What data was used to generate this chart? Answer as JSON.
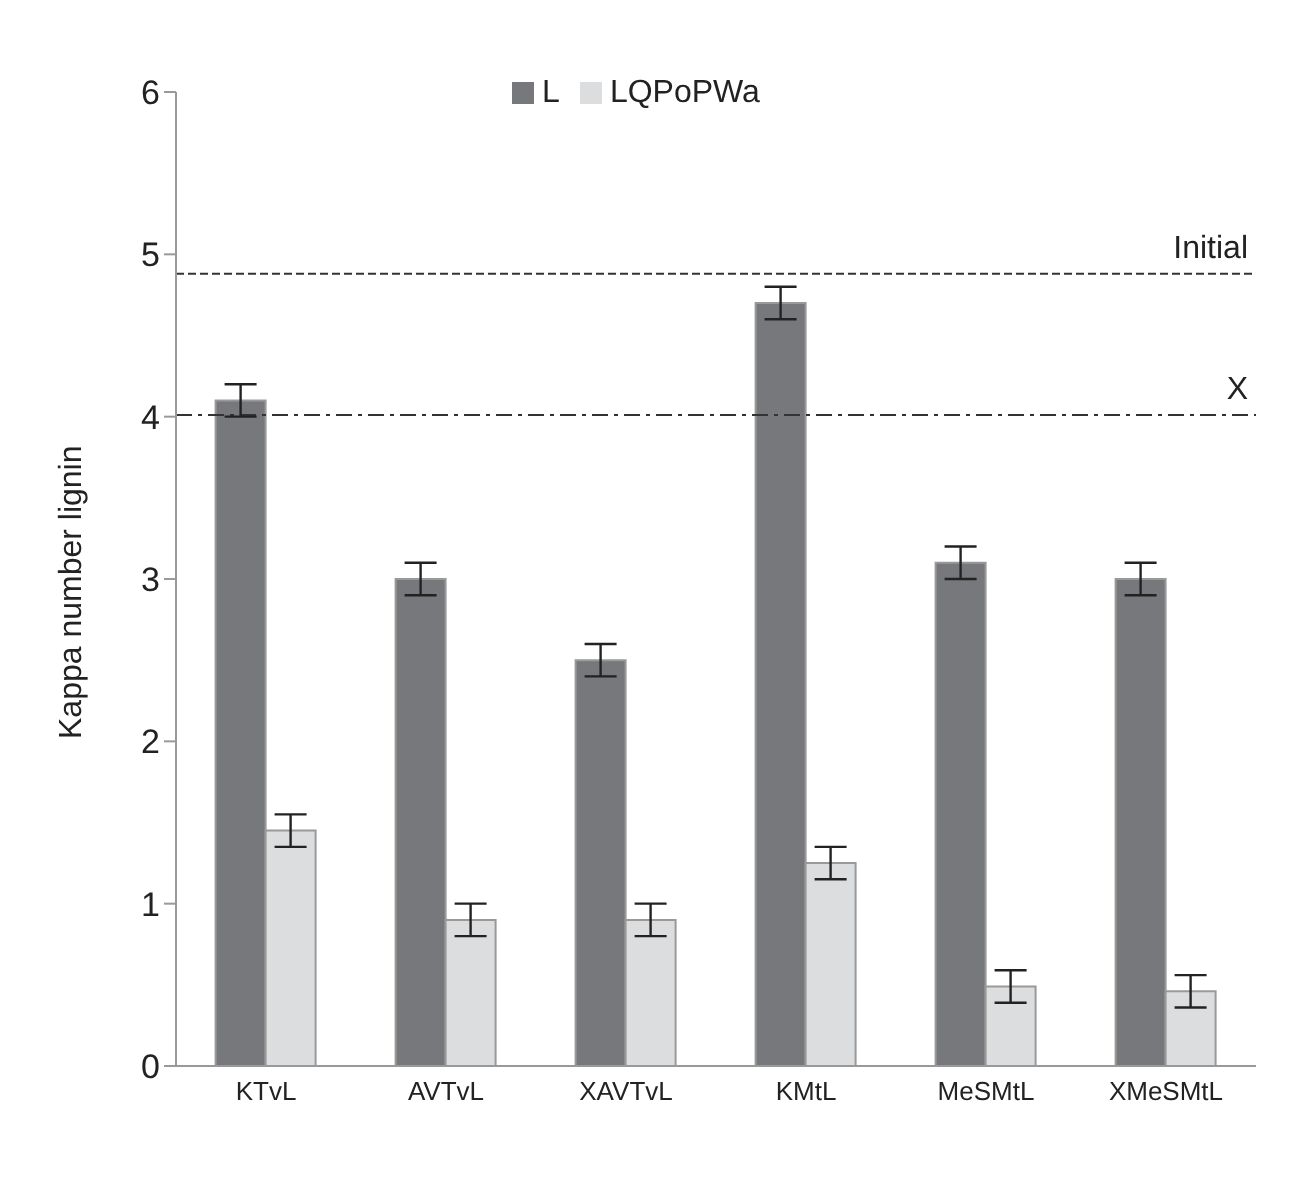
{
  "chart_data": {
    "type": "bar",
    "ylabel": "Kappa number lignin",
    "categories": [
      "KTvL",
      "AVTvL",
      "XAVTvL",
      "KMtL",
      "MeSMtL",
      "XMeSMtL"
    ],
    "series": [
      {
        "name": "L",
        "color": "#77787b",
        "values": [
          4.1,
          3.0,
          2.5,
          4.7,
          3.1,
          3.0
        ],
        "errors": [
          0.1,
          0.1,
          0.1,
          0.1,
          0.1,
          0.1
        ]
      },
      {
        "name": "LQPoPWa",
        "color": "#dcdddf",
        "values": [
          1.45,
          0.9,
          0.9,
          1.25,
          0.49,
          0.46
        ],
        "errors": [
          0.1,
          0.1,
          0.1,
          0.1,
          0.1,
          0.1
        ]
      }
    ],
    "ylim": [
      0,
      6
    ],
    "yticks": [
      0,
      1,
      2,
      3,
      4,
      5,
      6
    ],
    "grid": false,
    "legend": "top",
    "ref_lines": [
      {
        "axis": "y",
        "value": 4.88,
        "label": "Initial",
        "line_style": "dashed",
        "color": "#333333"
      },
      {
        "axis": "y",
        "value": 4.01,
        "label": "X",
        "line_style": "dashdot",
        "color": "#333333"
      }
    ]
  }
}
